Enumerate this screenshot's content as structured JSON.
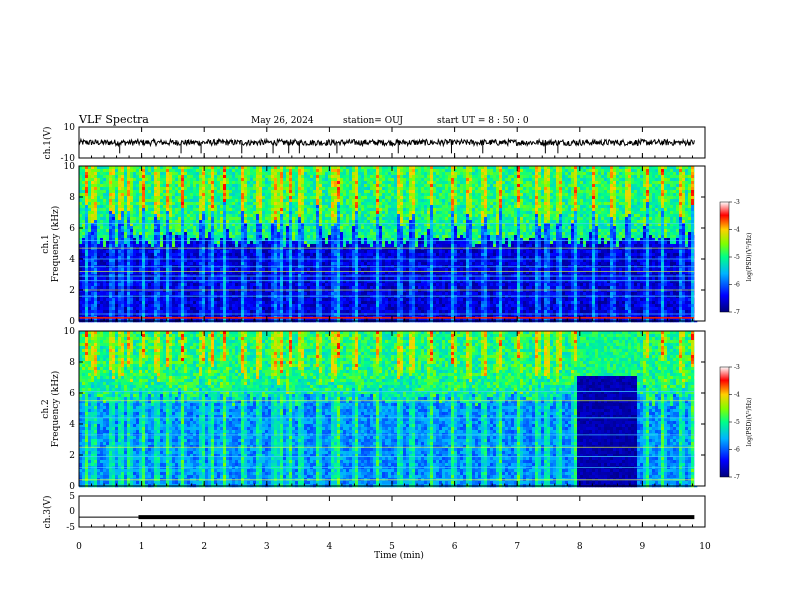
{
  "header": {
    "title": "VLF Spectra",
    "date": "May 26, 2024",
    "station": "station= OUJ",
    "start": "start  UT =   8  : 50 : 0"
  },
  "chart_data": [
    {
      "type": "line",
      "name": "ch1-waveform",
      "ylabel": "ch.1(V)",
      "ylim": [
        -10,
        10
      ],
      "ytick_labels": [
        "10",
        "-10"
      ],
      "baseline": 0,
      "amplitude_range": [
        -2,
        2
      ],
      "spikes_min": [
        0.65,
        1.63,
        1.95,
        2.6,
        3.1,
        3.35,
        3.52,
        4.12,
        5.1,
        5.95,
        6.45,
        7.45,
        7.65
      ],
      "x_range_min": [
        0,
        9.83
      ]
    },
    {
      "type": "heatmap",
      "name": "ch1-spectrogram",
      "ylabel": "ch.1\nFrequency  (kHz)",
      "ylim": [
        0,
        10
      ],
      "yticks": [
        "0",
        "2",
        "4",
        "6",
        "8",
        "10"
      ],
      "colorbar": {
        "label": "log(PSD)(V²/Hz)",
        "ticks": [
          "-3",
          "-4",
          "-5",
          "-6",
          "-7"
        ],
        "range": [
          -7,
          -3
        ]
      },
      "noise_floor_log_psd": -6.9,
      "high_band_log_psd": -5.0,
      "transition_freq_khz": 5.5,
      "horizontal_lines_khz": [
        0.2,
        0.45,
        1.6,
        2.0,
        2.6,
        2.9,
        3.2,
        3.5,
        4.0,
        4.7,
        5.2,
        6.3
      ],
      "sferic_times_min": [
        0.1,
        0.22,
        0.5,
        0.65,
        0.78,
        1.0,
        1.22,
        1.4,
        1.63,
        1.95,
        2.1,
        2.3,
        2.6,
        2.85,
        3.1,
        3.2,
        3.35,
        3.52,
        3.8,
        4.05,
        4.12,
        4.4,
        4.75,
        5.1,
        5.3,
        5.6,
        5.95,
        6.2,
        6.45,
        6.7,
        7.0,
        7.3,
        7.45,
        7.65,
        7.9,
        8.2,
        8.5,
        8.75,
        9.05,
        9.3,
        9.6,
        9.78
      ]
    },
    {
      "type": "heatmap",
      "name": "ch2-spectrogram",
      "ylabel": "ch.2\nFrequency  (kHz)",
      "ylim": [
        0,
        10
      ],
      "yticks": [
        "0",
        "2",
        "4",
        "6",
        "8",
        "10"
      ],
      "colorbar": {
        "label": "log(PSD)(V²/Hz)",
        "ticks": [
          "-3",
          "-4",
          "-5",
          "-6",
          "-7"
        ],
        "range": [
          -7,
          -3
        ]
      },
      "noise_floor_log_psd": -6.1,
      "high_band_log_psd": -5.0,
      "transition_freq_khz": 6.0,
      "quiet_interval_min": [
        7.95,
        8.9
      ],
      "horizontal_lines_khz": [
        0.4,
        1.2,
        1.9,
        2.5,
        3.3,
        4.4,
        5.5,
        6.1
      ],
      "sferic_times_min": [
        0.1,
        0.22,
        0.5,
        0.65,
        0.78,
        1.0,
        1.22,
        1.4,
        1.63,
        1.95,
        2.1,
        2.3,
        2.6,
        2.85,
        3.1,
        3.2,
        3.35,
        3.52,
        3.8,
        4.05,
        4.12,
        4.4,
        4.75,
        5.1,
        5.3,
        5.6,
        5.95,
        6.2,
        6.45,
        6.7,
        7.0,
        7.3,
        7.45,
        7.65,
        7.9,
        8.2,
        8.5,
        8.75,
        9.05,
        9.3,
        9.6,
        9.78
      ]
    },
    {
      "type": "line",
      "name": "ch3-waveform",
      "ylabel": "ch.3(V)",
      "ylim": [
        -5,
        5
      ],
      "ytick_labels": [
        "5",
        "0",
        "-5"
      ],
      "segments": [
        {
          "x": [
            0,
            0.95
          ],
          "y": -1.8,
          "thickness": "thin"
        },
        {
          "x": [
            0.95,
            9.83
          ],
          "y": -1.8,
          "thickness": "thick"
        }
      ]
    }
  ],
  "xaxis": {
    "label": "Time  (min)",
    "xlim": [
      0,
      10
    ],
    "ticks": [
      "0",
      "1",
      "2",
      "3",
      "4",
      "5",
      "6",
      "7",
      "8",
      "9",
      "10"
    ]
  }
}
